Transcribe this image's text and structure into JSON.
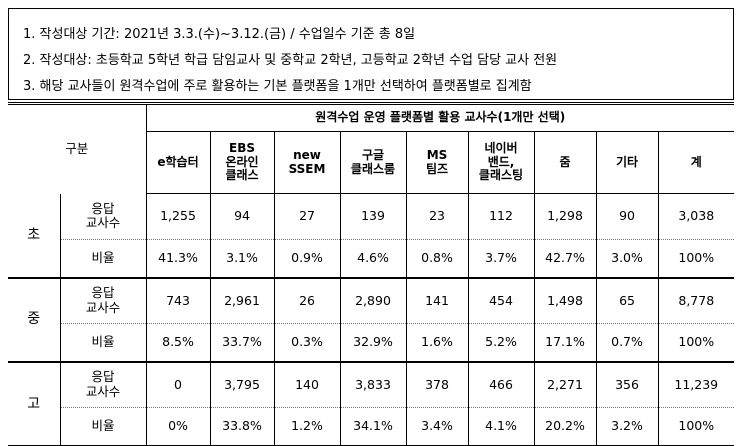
{
  "notes": [
    "1. 작성대상 기간: 2021년 3.3.(수)~3.12.(금) / 수업일수 기준 총 8일",
    "2. 작성대상: 초등학교 5학년 학급 담임교사 및 중학교 2학년, 고등학교 2학년 수업 담당 교사 전원",
    "3. 해당 교사들이 원격수업에 주로 활용하는 기본 플랫폼을 1개만 선택하여 플랫폼별로 집계함"
  ],
  "table": {
    "corner_label": "구분",
    "span_header": "원격수업 운영 플랫폼별 활용 교사수(1개만 선택)",
    "columns": [
      {
        "lines": [
          "e학습터"
        ]
      },
      {
        "lines": [
          "EBS",
          "온라인",
          "클래스"
        ]
      },
      {
        "lines": [
          "new",
          "SSEM"
        ]
      },
      {
        "lines": [
          "구글",
          "클래스룸"
        ]
      },
      {
        "lines": [
          "MS",
          "팀즈"
        ]
      },
      {
        "lines": [
          "네이버",
          "밴드,",
          "클래스팅"
        ]
      },
      {
        "lines": [
          "줌"
        ]
      },
      {
        "lines": [
          "기타"
        ]
      },
      {
        "lines": [
          "계"
        ]
      }
    ],
    "groups": [
      {
        "name": "초",
        "count_label": [
          "응답",
          "교사수"
        ],
        "rate_label": "비율",
        "counts": [
          "1,255",
          "94",
          "27",
          "139",
          "23",
          "112",
          "1,298",
          "90",
          "3,038"
        ],
        "rates": [
          "41.3%",
          "3.1%",
          "0.9%",
          "4.6%",
          "0.8%",
          "3.7%",
          "42.7%",
          "3.0%",
          "100%"
        ]
      },
      {
        "name": "중",
        "count_label": [
          "응답",
          "교사수"
        ],
        "rate_label": "비율",
        "counts": [
          "743",
          "2,961",
          "26",
          "2,890",
          "141",
          "454",
          "1,498",
          "65",
          "8,778"
        ],
        "rates": [
          "8.5%",
          "33.7%",
          "0.3%",
          "32.9%",
          "1.6%",
          "5.2%",
          "17.1%",
          "0.7%",
          "100%"
        ]
      },
      {
        "name": "고",
        "count_label": [
          "응답",
          "교사수"
        ],
        "rate_label": "비율",
        "counts": [
          "0",
          "3,795",
          "140",
          "3,833",
          "378",
          "466",
          "2,271",
          "356",
          "11,239"
        ],
        "rates": [
          "0%",
          "33.8%",
          "1.2%",
          "34.1%",
          "3.4%",
          "4.1%",
          "20.2%",
          "3.2%",
          "100%"
        ]
      }
    ]
  }
}
